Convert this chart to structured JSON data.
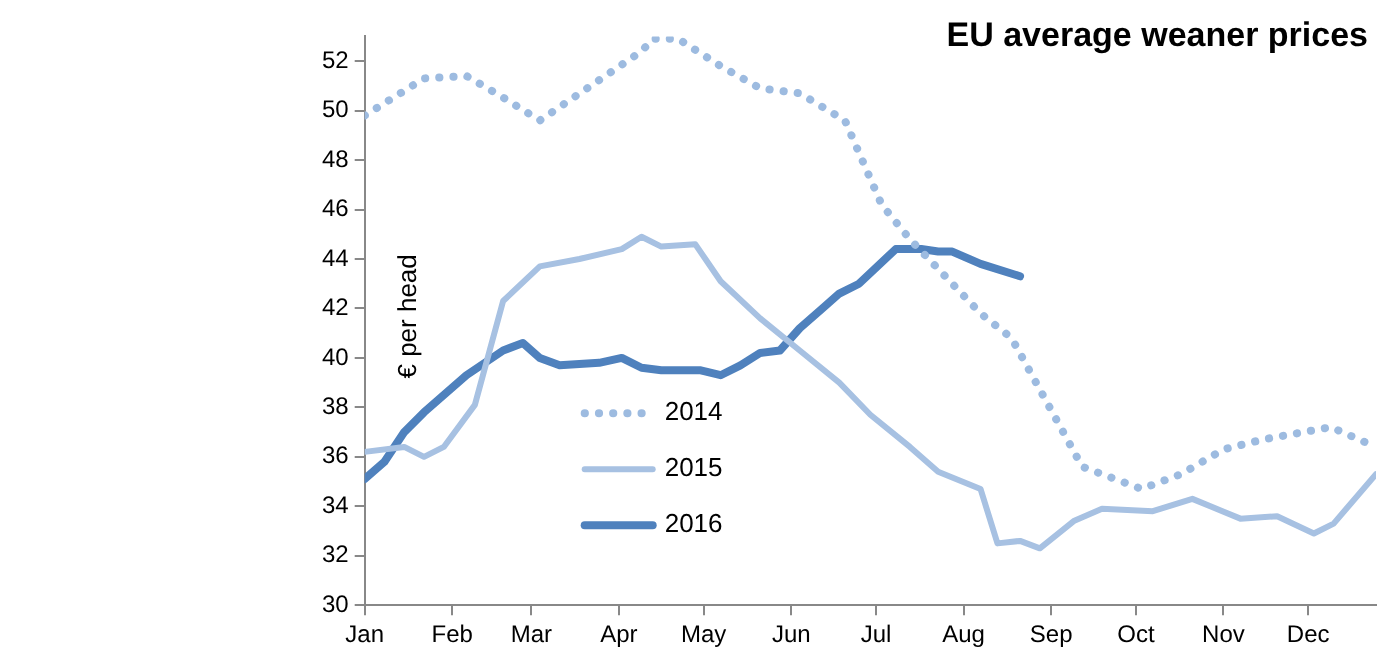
{
  "chart_data": {
    "type": "line",
    "title": "EU average weaner prices",
    "ylabel": "€ per head",
    "xlim": [
      "--01-01",
      "--12-25"
    ],
    "xticks": [
      {
        "value": "--01-01",
        "label": "Jan"
      },
      {
        "value": "--02-01",
        "label": "Feb"
      },
      {
        "value": "--03-01",
        "label": "Mar"
      },
      {
        "value": "--04-01",
        "label": "Apr"
      },
      {
        "value": "--05-01",
        "label": "May"
      },
      {
        "value": "--06-01",
        "label": "Jun"
      },
      {
        "value": "--07-01",
        "label": "Jul"
      },
      {
        "value": "--08-01",
        "label": "Aug"
      },
      {
        "value": "--09-01",
        "label": "Sep"
      },
      {
        "value": "--10-01",
        "label": "Oct"
      },
      {
        "value": "--11-01",
        "label": "Nov"
      },
      {
        "value": "--12-01",
        "label": "Dec"
      }
    ],
    "ylim": [
      30,
      53
    ],
    "yticks": [
      30,
      32,
      34,
      36,
      38,
      40,
      42,
      44,
      46,
      48,
      50,
      52
    ],
    "grid": false,
    "legend": "bottom left",
    "marker": "none",
    "series": [
      {
        "name": "2014",
        "color": "#9dbbe0",
        "line_style": "dotted",
        "x": [
          "--01-01",
          "--01-22",
          "--02-06",
          "--02-18",
          "--03-04",
          "--04-09",
          "--04-13",
          "--04-22",
          "--05-07",
          "--05-21",
          "--06-04",
          "--06-20",
          "--07-03",
          "--07-13",
          "--07-23",
          "--08-07",
          "--08-18",
          "--09-12",
          "--10-03",
          "--10-17",
          "--11-01",
          "--11-15",
          "--12-09",
          "--12-25"
        ],
        "values": [
          49.8,
          51.3,
          51.4,
          50.6,
          49.6,
          52.4,
          52.9,
          52.9,
          51.8,
          50.9,
          50.7,
          49.6,
          46.2,
          44.8,
          43.6,
          41.8,
          40.8,
          35.6,
          34.7,
          35.3,
          36.3,
          36.7,
          37.2,
          36.4
        ]
      },
      {
        "name": "2015",
        "color": "#a7c1e2",
        "line_style": "solid",
        "x": [
          "--01-01",
          "--01-15",
          "--01-22",
          "--01-29",
          "--02-09",
          "--02-19",
          "--03-04",
          "--03-18",
          "--04-02",
          "--04-09",
          "--04-16",
          "--04-28",
          "--05-07",
          "--05-21",
          "--06-04",
          "--06-18",
          "--06-29",
          "--07-13",
          "--07-23",
          "--08-07",
          "--08-13",
          "--08-21",
          "--08-28",
          "--09-09",
          "--09-19",
          "--10-07",
          "--10-21",
          "--11-07",
          "--11-20",
          "--12-03",
          "--12-10",
          "--12-25"
        ],
        "values": [
          36.2,
          36.4,
          36,
          36.4,
          38.1,
          42.3,
          43.7,
          44,
          44.4,
          44.9,
          44.5,
          44.6,
          43.1,
          41.6,
          40.3,
          39,
          37.7,
          36.4,
          35.4,
          34.7,
          32.5,
          32.6,
          32.3,
          33.4,
          33.9,
          33.8,
          34.3,
          33.5,
          33.6,
          32.9,
          33.3,
          35.3
        ]
      },
      {
        "name": "2016",
        "color": "#4f81bd",
        "line_style": "solid",
        "x": [
          "--01-01",
          "--01-08",
          "--01-15",
          "--01-22",
          "--02-06",
          "--02-19",
          "--02-26",
          "--03-04",
          "--03-11",
          "--03-25",
          "--04-02",
          "--04-09",
          "--04-16",
          "--04-30",
          "--05-07",
          "--05-14",
          "--05-21",
          "--05-28",
          "--06-04",
          "--06-12",
          "--06-18",
          "--06-25",
          "--07-08",
          "--07-17",
          "--07-23",
          "--07-28",
          "--08-07",
          "--08-21"
        ],
        "values": [
          35.1,
          35.8,
          37,
          37.8,
          39.3,
          40.3,
          40.6,
          40,
          39.7,
          39.8,
          40,
          39.6,
          39.5,
          39.5,
          39.3,
          39.7,
          40.2,
          40.3,
          41.2,
          42,
          42.6,
          43,
          44.4,
          44.4,
          44.3,
          44.3,
          43.8,
          43.3
        ]
      }
    ]
  }
}
